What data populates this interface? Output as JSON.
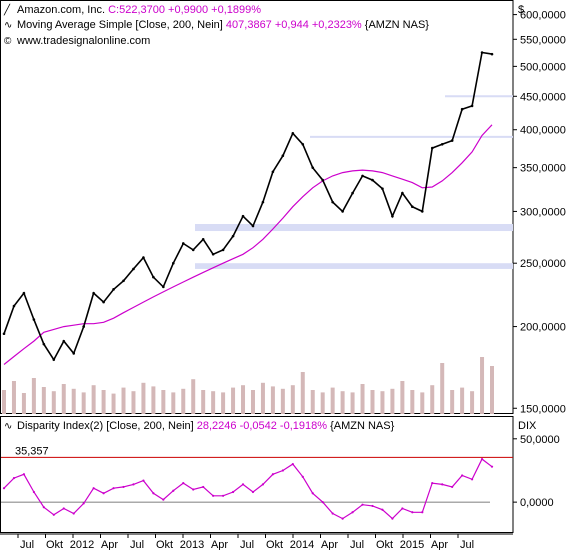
{
  "header": {
    "price_line": {
      "name": "Amazon.com, Inc.",
      "values": "C:522,3700 +0,9900 +0,1899%"
    },
    "ma_line": {
      "name": "Moving Average Simple [Close, 200, Nein]",
      "values": "407,3867 +0,944 +0,2323%",
      "symbol": "{AMZN NAS}"
    },
    "site": "www.tradesignalonline.com",
    "icons": [
      "line-chart-icon",
      "wave-icon",
      "copyright-icon"
    ]
  },
  "dix_header": {
    "name": "Disparity Index(2) [Close, 200, Nein]",
    "values": "28,2246 -0,0542 -0,1918%",
    "symbol": "{AMZN NAS}"
  },
  "axis_unit_top": "$",
  "axis_unit_bottom": "DIX",
  "x_ticks": [
    "Jul",
    "Okt",
    "2012",
    "Apr",
    "Jul",
    "Okt",
    "2013",
    "Apr",
    "Jul",
    "Okt",
    "2014",
    "Apr",
    "Jul",
    "Okt",
    "2015",
    "Apr",
    "Jul"
  ],
  "colors": {
    "price": "#000000",
    "ma": "#cc00cc",
    "dix": "#cc00cc",
    "threshold": "#cc0000",
    "zones": "#d8dcf5",
    "volume": "#d4b8b8"
  },
  "chart_data": [
    {
      "type": "line",
      "title": "Amazon.com, Inc.",
      "scale": "log",
      "yticks": [
        "600,0000",
        "550,0000",
        "500,0000",
        "450,0000",
        "400,0000",
        "350,0000",
        "300,0000",
        "250,0000",
        "200,0000",
        "150,0000"
      ],
      "ytick_values": [
        600,
        550,
        500,
        450,
        400,
        350,
        300,
        250,
        200,
        150
      ],
      "ylim": [
        147,
        625
      ],
      "x": [
        "2011-07",
        "2011-08",
        "2011-09",
        "2011-10",
        "2011-11",
        "2011-12",
        "2012-01",
        "2012-02",
        "2012-03",
        "2012-04",
        "2012-05",
        "2012-06",
        "2012-07",
        "2012-08",
        "2012-09",
        "2012-10",
        "2012-11",
        "2012-12",
        "2013-01",
        "2013-02",
        "2013-03",
        "2013-04",
        "2013-05",
        "2013-06",
        "2013-07",
        "2013-08",
        "2013-09",
        "2013-10",
        "2013-11",
        "2013-12",
        "2014-01",
        "2014-02",
        "2014-03",
        "2014-04",
        "2014-05",
        "2014-06",
        "2014-07",
        "2014-08",
        "2014-09",
        "2014-10",
        "2014-11",
        "2014-12",
        "2015-01",
        "2015-02",
        "2015-03",
        "2015-04",
        "2015-05",
        "2015-06",
        "2015-07",
        "2015-08"
      ],
      "series": [
        {
          "name": "Amazon.com, Inc.",
          "values": [
            195,
            215,
            225,
            205,
            188,
            178,
            190,
            182,
            200,
            225,
            218,
            228,
            235,
            245,
            255,
            238,
            230,
            250,
            268,
            262,
            272,
            258,
            262,
            275,
            295,
            285,
            310,
            345,
            365,
            395,
            380,
            350,
            335,
            310,
            300,
            320,
            340,
            335,
            325,
            295,
            320,
            305,
            300,
            375,
            380,
            385,
            430,
            435,
            525,
            522
          ]
        },
        {
          "name": "Moving Average Simple [Close, 200, Nein]",
          "values": [
            175,
            180,
            185,
            190,
            196,
            198,
            200,
            201,
            202,
            202,
            203,
            206,
            210,
            214,
            218,
            222,
            226,
            230,
            234,
            238,
            242,
            246,
            250,
            254,
            258,
            264,
            272,
            282,
            293,
            305,
            316,
            326,
            334,
            340,
            344,
            346,
            347,
            346,
            344,
            340,
            336,
            332,
            326,
            327,
            334,
            344,
            356,
            370,
            392,
            407
          ]
        }
      ],
      "support_zones": [
        [
          280,
          287
        ],
        [
          245,
          250
        ]
      ],
      "volume": [
        40,
        55,
        35,
        60,
        45,
        38,
        50,
        42,
        36,
        48,
        40,
        34,
        44,
        38,
        52,
        46,
        40,
        36,
        42,
        58,
        40,
        38,
        36,
        44,
        48,
        40,
        52,
        46,
        42,
        48,
        70,
        40,
        36,
        44,
        38,
        36,
        50,
        40,
        38,
        42,
        55,
        40,
        36,
        48,
        85,
        40,
        44,
        38,
        95,
        80
      ]
    },
    {
      "type": "line",
      "title": "Disparity Index(2) [Close, 200, Nein]",
      "yticks": [
        "50,0000",
        "0,0000"
      ],
      "ytick_values": [
        50,
        0
      ],
      "ylim": [
        -22,
        68
      ],
      "threshold": 35.357,
      "threshold_label": "35,357",
      "series": [
        {
          "name": "Disparity Index(2) [Close, 200, Nein]",
          "values": [
            11,
            19,
            22,
            8,
            -4,
            -10,
            -5,
            -9,
            -1,
            11,
            7,
            11,
            12,
            14,
            17,
            7,
            2,
            9,
            15,
            10,
            12,
            5,
            5,
            8,
            14,
            8,
            14,
            22,
            25,
            30,
            20,
            7,
            0,
            -9,
            -13,
            -8,
            -2,
            -3,
            -6,
            -13,
            -5,
            -8,
            -8,
            15,
            14,
            12,
            21,
            18,
            34,
            28
          ]
        }
      ]
    }
  ]
}
